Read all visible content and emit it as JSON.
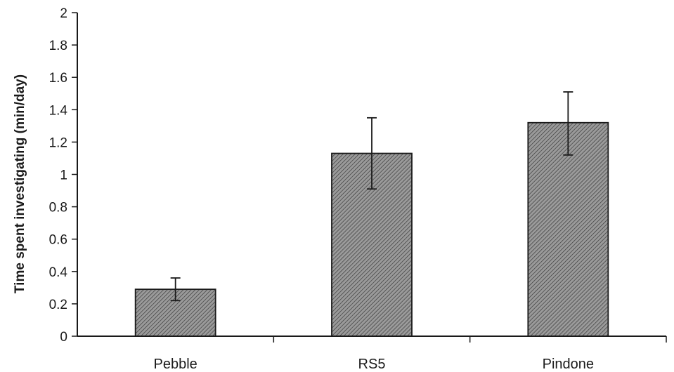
{
  "chart_data": {
    "type": "bar",
    "title": "",
    "xlabel": "",
    "ylabel": "Time spent investigating (min/day)",
    "categories": [
      "Pebble",
      "RS5",
      "Pindone"
    ],
    "values": [
      0.29,
      1.13,
      1.32
    ],
    "error_low": [
      0.22,
      0.91,
      1.12
    ],
    "error_high": [
      0.36,
      1.35,
      1.51
    ],
    "ylim": [
      0,
      2
    ],
    "yticks": [
      0,
      0.2,
      0.4,
      0.6,
      0.8,
      1,
      1.2,
      1.4,
      1.6,
      1.8,
      2
    ],
    "ytick_labels": [
      "0",
      "0.2",
      "0.4",
      "0.6",
      "0.8",
      "1",
      "1.2",
      "1.4",
      "1.6",
      "1.8",
      "2"
    ],
    "grid": false,
    "legend": "none",
    "bar_color": "#8c8c8c",
    "bar_stroke": "#1a1a1a"
  }
}
